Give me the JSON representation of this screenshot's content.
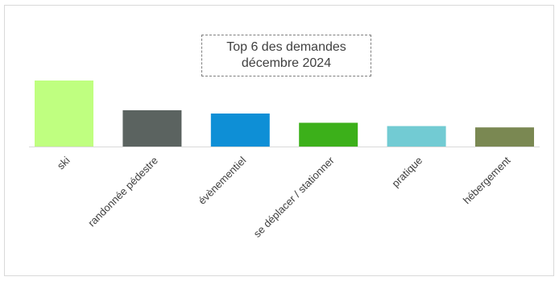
{
  "chart_data": {
    "type": "bar",
    "title_line1": "Top 6 des demandes",
    "title_line2": "décembre 2024",
    "categories": [
      "ski",
      "randonnée pédestre",
      "évènementiel",
      "se déplacer / stationner",
      "pratique",
      "hébergement"
    ],
    "values": [
      100,
      55,
      50,
      36,
      31,
      29
    ],
    "colors": [
      "#bfff80",
      "#5b6360",
      "#0e8fd6",
      "#3cb01a",
      "#72cbd3",
      "#7a8852"
    ],
    "ylim": [
      0,
      100
    ],
    "grid": false,
    "legend": "none"
  }
}
